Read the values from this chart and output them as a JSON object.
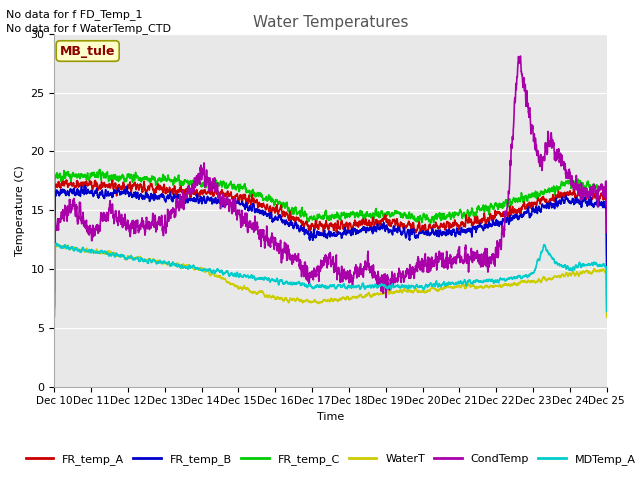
{
  "title": "Water Temperatures",
  "ylabel": "Temperature (C)",
  "xlabel": "Time",
  "no_data_text": [
    "No data for f FD_Temp_1",
    "No data for f WaterTemp_CTD"
  ],
  "mb_tule_label": "MB_tule",
  "ylim": [
    0,
    30
  ],
  "background_color": "#e8e8e8",
  "plot_bg": "#e8e8e8",
  "series": {
    "FR_temp_A": {
      "color": "#cc0000",
      "linewidth": 1.2
    },
    "FR_temp_B": {
      "color": "#0000cc",
      "linewidth": 1.2
    },
    "FR_temp_C": {
      "color": "#00cc00",
      "linewidth": 1.2
    },
    "WaterT": {
      "color": "#cccc00",
      "linewidth": 1.2
    },
    "CondTemp": {
      "color": "#aa00aa",
      "linewidth": 1.2
    },
    "MDTemp_A": {
      "color": "#00cccc",
      "linewidth": 1.2
    }
  },
  "xticks": [
    "Dec 10",
    "Dec 11",
    "Dec 12",
    "Dec 13",
    "Dec 14",
    "Dec 15",
    "Dec 16",
    "Dec 17",
    "Dec 18",
    "Dec 19",
    "Dec 20",
    "Dec 21",
    "Dec 22",
    "Dec 23",
    "Dec 24",
    "Dec 25"
  ],
  "yticks": [
    0,
    5,
    10,
    15,
    20,
    25,
    30
  ],
  "figsize": [
    6.4,
    4.8
  ],
  "dpi": 100
}
